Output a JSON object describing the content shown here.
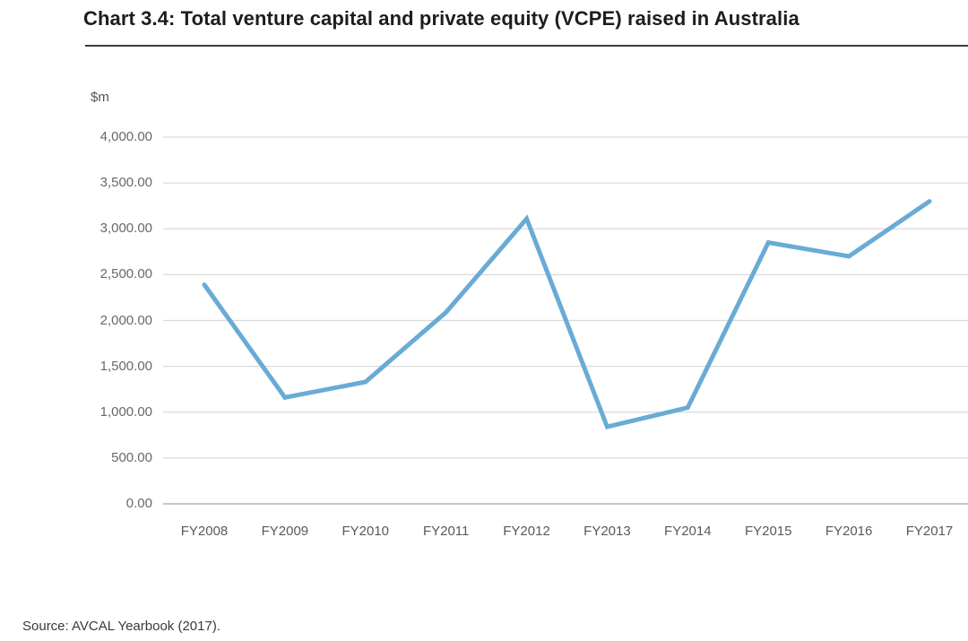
{
  "header": {
    "title": "Chart 3.4: Total venture capital and private equity (VCPE) raised in Australia"
  },
  "footer": {
    "source": "Source: AVCAL Yearbook (2017)."
  },
  "chart_data": {
    "type": "line",
    "title": "Chart 3.4: Total venture capital and private equity (VCPE) raised in Australia",
    "ylabel": "$m",
    "xlabel": "",
    "categories": [
      "FY2008",
      "FY2009",
      "FY2010",
      "FY2011",
      "FY2012",
      "FY2013",
      "FY2014",
      "FY2015",
      "FY2016",
      "FY2017"
    ],
    "series": [
      {
        "name": "Total VCPE raised ($m)",
        "values": [
          2390,
          1160,
          1330,
          2090,
          3110,
          840,
          1050,
          2850,
          2700,
          3300
        ]
      }
    ],
    "ylim": [
      0,
      4000
    ],
    "ytick_step": 500,
    "ytick_labels": [
      "0.00",
      "500.00",
      "1,000.00",
      "1,500.00",
      "2,000.00",
      "2,500.00",
      "3,000.00",
      "3,500.00",
      "4,000.00"
    ],
    "grid": true,
    "legend": "none",
    "colors": {
      "line": "#69abd5",
      "grid": "#dadada",
      "baseline": "#b5b5b5",
      "title_text": "#1d1d1f",
      "tick_text": "#68686a",
      "source_text": "#3a3a3c",
      "title_rule": "#3c3c3c",
      "background": "#ffffff"
    }
  }
}
